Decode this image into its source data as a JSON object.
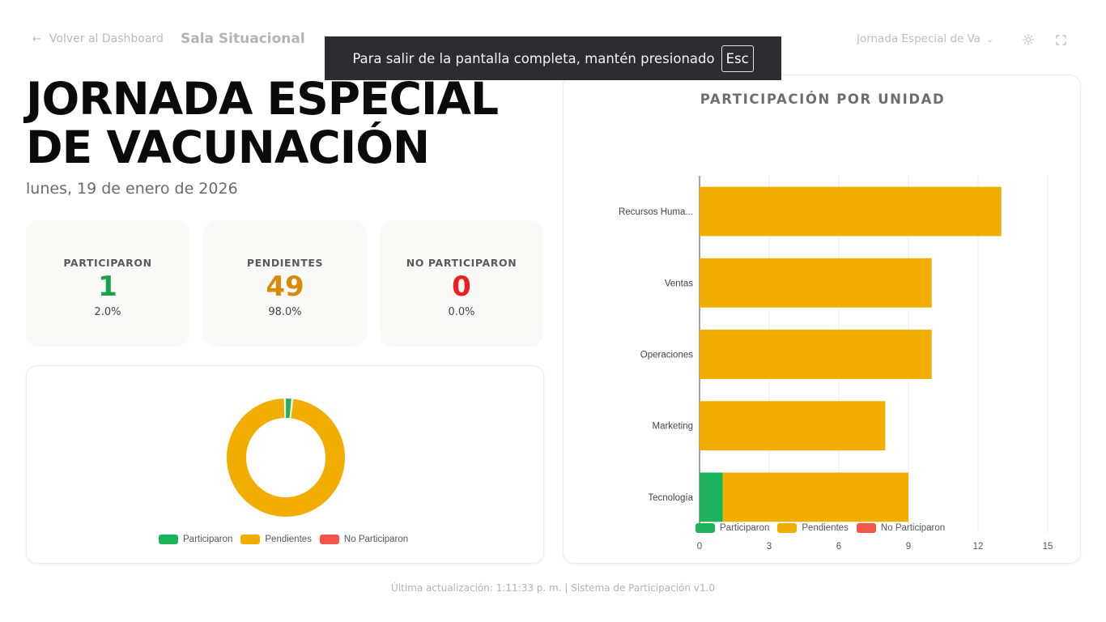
{
  "header": {
    "back_label": "Volver al Dashboard",
    "app_title": "Sala Situacional",
    "event_selected": "Jornada Especial de Vacunación"
  },
  "fullscreen_notice": {
    "text": "Para salir de la pantalla completa, mantén presionado",
    "key": "Esc"
  },
  "main": {
    "title_line1": "JORNADA ESPECIAL",
    "title_line2": "DE VACUNACIÓN",
    "date": "lunes, 19 de enero de 2026"
  },
  "stats": [
    {
      "label": "PARTICIPARON",
      "value": "1",
      "pct": "2.0%",
      "color": "#16a34a"
    },
    {
      "label": "PENDIENTES",
      "value": "49",
      "pct": "98.0%",
      "color": "#d98a0b"
    },
    {
      "label": "NO PARTICIPARON",
      "value": "0",
      "pct": "0.0%",
      "color": "#ef1d1d"
    }
  ],
  "legend": [
    {
      "label": "Participaron",
      "color": "#1db35c"
    },
    {
      "label": "Pendientes",
      "color": "#f2ae00"
    },
    {
      "label": "No Participaron",
      "color": "#f5544a"
    }
  ],
  "chart_data": [
    {
      "type": "pie",
      "donut": true,
      "categories": [
        "Participaron",
        "Pendientes",
        "No Participaron"
      ],
      "values": [
        1,
        49,
        0
      ],
      "colors": [
        "#1db35c",
        "#f2ae00",
        "#f5544a"
      ],
      "legend_position": "bottom"
    },
    {
      "type": "bar",
      "orientation": "horizontal",
      "stacked": true,
      "title": "PARTICIPACIÓN POR UNIDAD",
      "categories": [
        "Recursos Huma...",
        "Ventas",
        "Operaciones",
        "Marketing",
        "Tecnología"
      ],
      "series": [
        {
          "name": "Participaron",
          "values": [
            0,
            0,
            0,
            0,
            1
          ],
          "color": "#1db35c"
        },
        {
          "name": "Pendientes",
          "values": [
            13,
            10,
            10,
            8,
            8
          ],
          "color": "#f2ae00"
        },
        {
          "name": "No Participaron",
          "values": [
            0,
            0,
            0,
            0,
            0
          ],
          "color": "#f5544a"
        }
      ],
      "xlim": [
        0,
        15
      ],
      "xticks": [
        0,
        3,
        6,
        9,
        12,
        15
      ],
      "grid": true,
      "legend_position": "bottom"
    }
  ],
  "footer": "Última actualización: 1:11:33 p. m. | Sistema de Participación v1.0"
}
